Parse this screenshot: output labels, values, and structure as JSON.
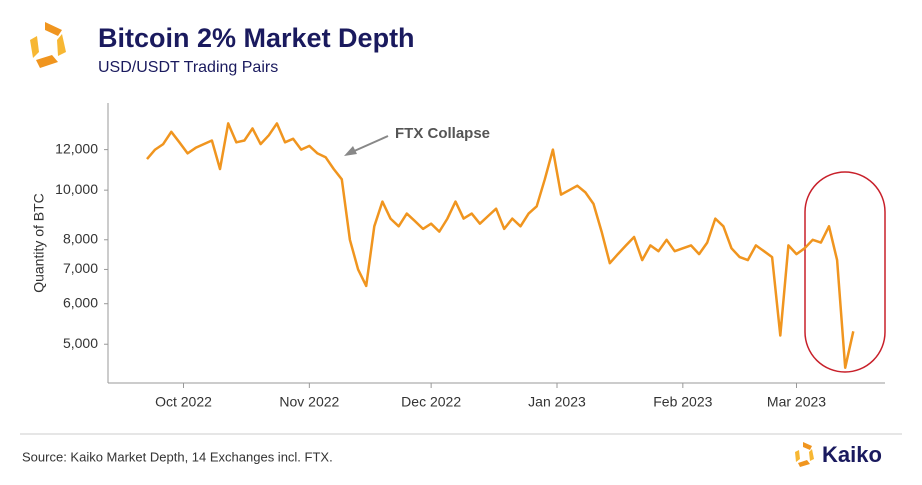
{
  "chart_data": {
    "type": "line",
    "title": "Bitcoin 2% Market Depth",
    "subtitle": "USD/USDT Trading Pairs",
    "y_label": "Quantity of BTC",
    "source": "Source: Kaiko Market Depth, 14 Exchanges incl. FTX.",
    "brand": "Kaiko",
    "annotation": "FTX Collapse",
    "log_y": true,
    "series": [
      {
        "name": "Bitcoin 2% Market Depth",
        "color": "#f0951f",
        "values": [
          11500,
          12000,
          12300,
          13000,
          12400,
          11800,
          12100,
          12300,
          12500,
          11000,
          13500,
          12400,
          12500,
          13200,
          12300,
          12800,
          13500,
          12400,
          12600,
          12000,
          12200,
          11800,
          11600,
          11000,
          10500,
          8000,
          7000,
          6500,
          8500,
          9500,
          8800,
          8500,
          9000,
          8700,
          8400,
          8600,
          8300,
          8800,
          9500,
          8800,
          9000,
          8600,
          8900,
          9200,
          8400,
          8800,
          8500,
          9000,
          9300,
          10500,
          12000,
          9800,
          10000,
          10200,
          9900,
          9400,
          8300,
          7200,
          7500,
          7800,
          8100,
          7300,
          7800,
          7600,
          8000,
          7600,
          7700,
          7800,
          7500,
          7900,
          8800,
          8500,
          7700,
          7400,
          7300,
          7800,
          7600,
          7400,
          5200,
          7800,
          7500,
          7700,
          8000,
          7900,
          8500,
          7300,
          4500,
          5300
        ]
      }
    ],
    "xlim": [
      -4.8,
      90.9
    ],
    "xticks": [
      {
        "value": 4.5,
        "label": "Oct 2022"
      },
      {
        "value": 20,
        "label": "Nov 2022"
      },
      {
        "value": 35,
        "label": "Dec 2022"
      },
      {
        "value": 50.5,
        "label": "Jan 2023"
      },
      {
        "value": 66,
        "label": "Feb 2023"
      },
      {
        "value": 80,
        "label": "Mar 2023"
      }
    ],
    "ylim": [
      4200,
      14800
    ],
    "yticks": [
      {
        "value": 5000,
        "label": "5,000"
      },
      {
        "value": 6000,
        "label": "6,000"
      },
      {
        "value": 7000,
        "label": "7,000"
      },
      {
        "value": 8000,
        "label": "8,000"
      },
      {
        "value": 10000,
        "label": "10,000"
      },
      {
        "value": 12000,
        "label": "12,000"
      }
    ]
  }
}
